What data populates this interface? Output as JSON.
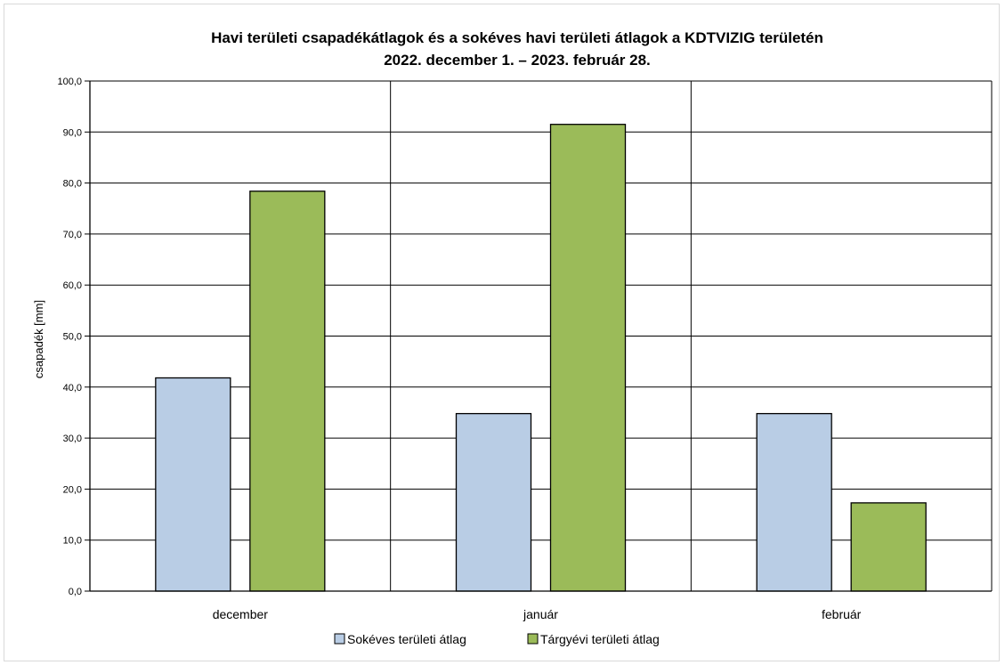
{
  "chart_data": {
    "type": "bar",
    "title": "Havi területi csapadékátlagok és a sokéves havi területi átlagok a KDTVIZIG területén",
    "subtitle": "2022. december 1. – 2023. február 28.",
    "xlabel": "",
    "ylabel": "csapadék [mm]",
    "ylim": [
      0,
      100
    ],
    "ytick_step": 10,
    "yticks": [
      "0,0",
      "10,0",
      "20,0",
      "30,0",
      "40,0",
      "50,0",
      "60,0",
      "70,0",
      "80,0",
      "90,0",
      "100,0"
    ],
    "categories": [
      "december",
      "január",
      "február"
    ],
    "series": [
      {
        "name": "Sokéves területi átlag",
        "color": "#b9cde5",
        "values": [
          41.8,
          34.8,
          34.8
        ]
      },
      {
        "name": "Tárgyévi területi átlag",
        "color": "#9bbb59",
        "values": [
          78.4,
          91.5,
          17.3
        ]
      }
    ],
    "grid": true,
    "legend": "bottom"
  }
}
